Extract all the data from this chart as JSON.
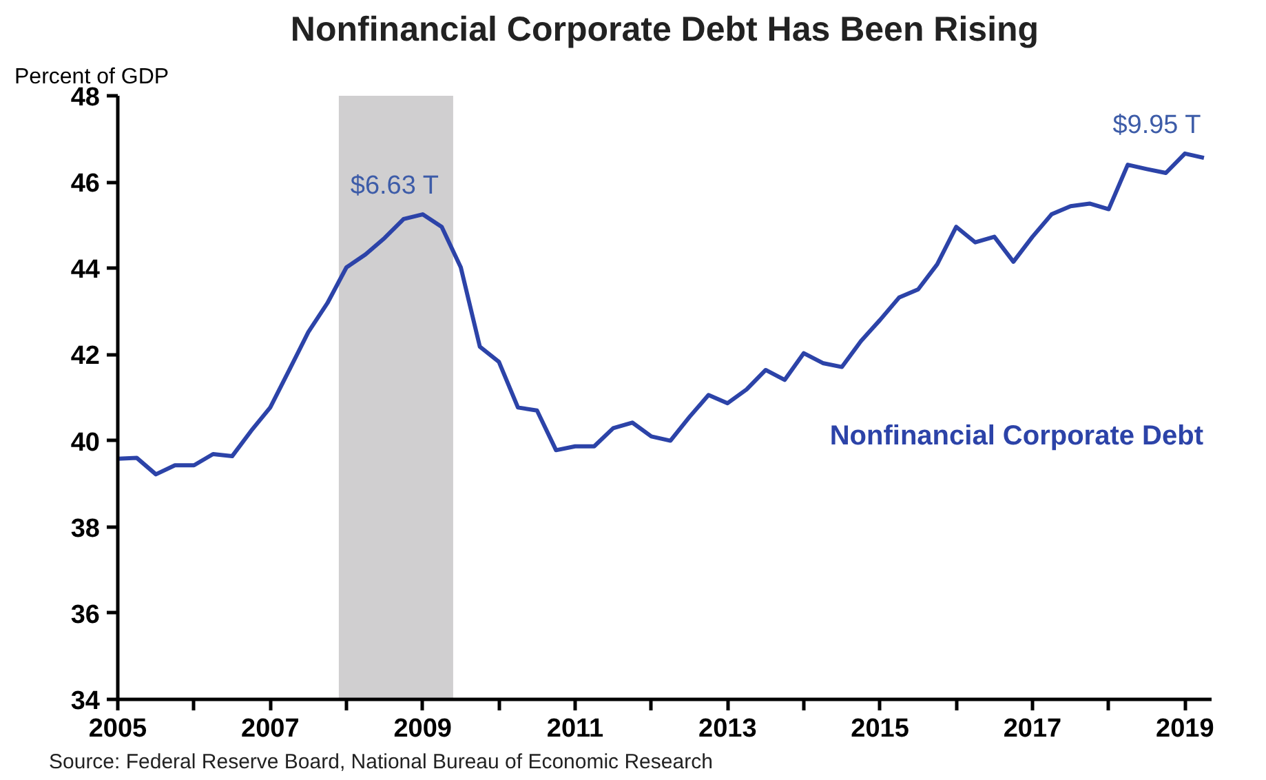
{
  "chart_data": {
    "type": "line",
    "title": "Nonfinancial Corporate Debt Has Been Rising",
    "ylabel": "Percent of GDP",
    "x": [
      2005.0,
      2005.25,
      2005.5,
      2005.75,
      2006.0,
      2006.25,
      2006.5,
      2006.75,
      2007.0,
      2007.25,
      2007.5,
      2007.75,
      2008.0,
      2008.25,
      2008.5,
      2008.75,
      2009.0,
      2009.25,
      2009.5,
      2009.75,
      2010.0,
      2010.25,
      2010.5,
      2010.75,
      2011.0,
      2011.25,
      2011.5,
      2011.75,
      2012.0,
      2012.25,
      2012.5,
      2012.75,
      2013.0,
      2013.25,
      2013.5,
      2013.75,
      2014.0,
      2014.25,
      2014.5,
      2014.75,
      2015.0,
      2015.25,
      2015.5,
      2015.75,
      2016.0,
      2016.25,
      2016.5,
      2016.75,
      2017.0,
      2017.25,
      2017.5,
      2017.75,
      2018.0,
      2018.25,
      2018.5,
      2018.75,
      2019.0,
      2019.25
    ],
    "series": [
      {
        "name": "Nonfinancial Corporate Debt",
        "color": "#2c43a8",
        "values": [
          39.58,
          39.6,
          39.22,
          39.43,
          39.43,
          39.69,
          39.64,
          40.23,
          40.77,
          41.64,
          42.52,
          43.19,
          44.02,
          44.32,
          44.7,
          45.14,
          45.25,
          44.96,
          44.02,
          42.18,
          41.83,
          40.77,
          40.7,
          39.78,
          39.87,
          39.87,
          40.29,
          40.42,
          40.1,
          40.0,
          40.55,
          41.06,
          40.87,
          41.19,
          41.64,
          41.41,
          42.03,
          41.8,
          41.71,
          42.31,
          42.8,
          43.32,
          43.51,
          44.09,
          44.96,
          44.6,
          44.73,
          44.15,
          44.73,
          45.25,
          45.44,
          45.5,
          45.37,
          46.4,
          46.3,
          46.21,
          46.66,
          46.56
        ]
      }
    ],
    "xlim": [
      2005,
      2019.35
    ],
    "ylim": [
      34,
      48
    ],
    "xticks": [
      2005,
      {
        "value": 2006,
        "label": null
      },
      2007,
      {
        "value": 2008,
        "label": null
      },
      2009,
      {
        "value": 2010,
        "label": null
      },
      2011,
      {
        "value": 2012,
        "label": null
      },
      2013,
      {
        "value": 2014,
        "label": null
      },
      2015,
      {
        "value": 2016,
        "label": null
      },
      2017,
      {
        "value": 2018,
        "label": null
      },
      2019
    ],
    "yticks": [
      34,
      36,
      38,
      40,
      42,
      44,
      46,
      48
    ],
    "bands": [
      {
        "axis": "x",
        "from": 2007.9,
        "to": 2009.4,
        "color": "#d0cfd0"
      }
    ],
    "annotations": [
      {
        "text": "$6.63 T",
        "x": 2009.0,
        "y": 45.25
      },
      {
        "text": "$9.95 T",
        "x": 2019.0,
        "y": 46.66
      },
      "Source:  Federal Reserve Board, National Bureau of Economic Research"
    ],
    "grid": false
  }
}
